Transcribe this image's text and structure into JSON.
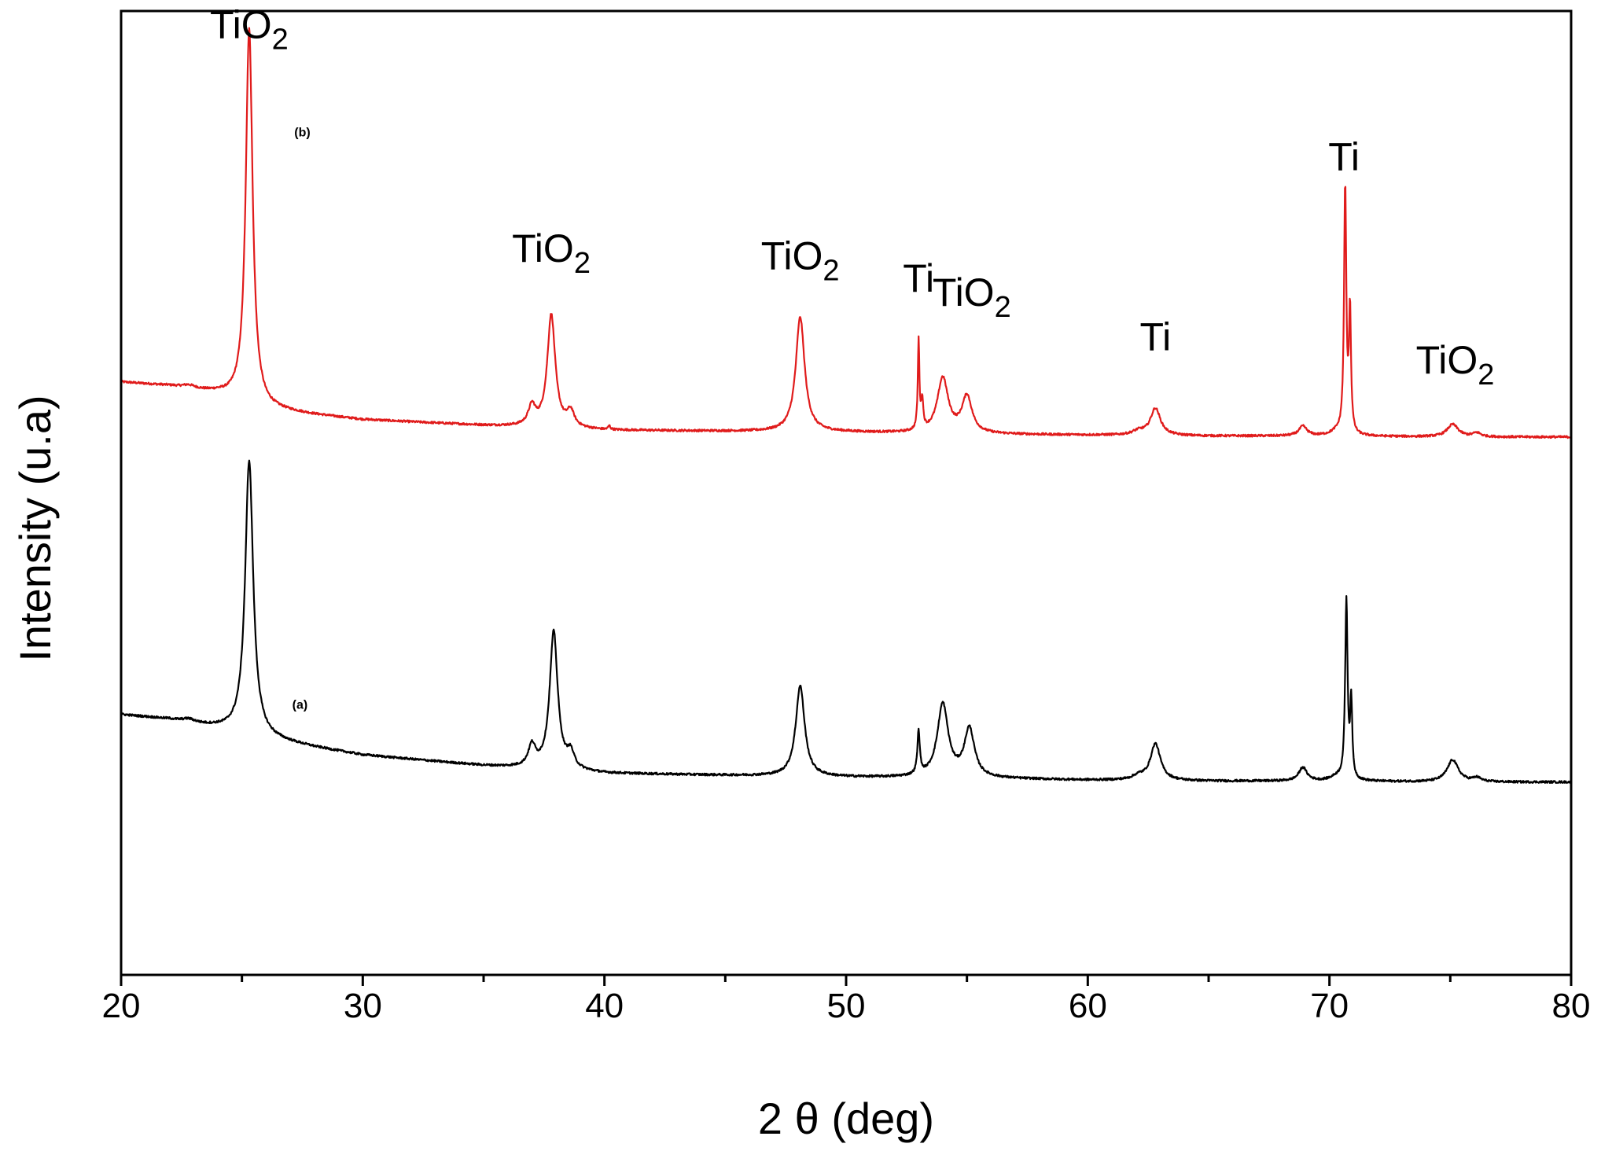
{
  "chart_data": {
    "type": "line",
    "title": "",
    "xlabel": "2 θ (deg)",
    "ylabel": "Intensity (u.a)",
    "xlim": [
      20,
      80
    ],
    "ylim": [
      0,
      100
    ],
    "x_ticks": [
      20,
      30,
      40,
      50,
      60,
      70,
      80
    ],
    "x_minor_step": 5,
    "grid": false,
    "series": [
      {
        "name": "(b)",
        "color": "#e01b1b",
        "baseline": [
          [
            20,
            61.5
          ],
          [
            22,
            61.1
          ],
          [
            24,
            60.3
          ],
          [
            26,
            58.7
          ],
          [
            28,
            58.1
          ],
          [
            30,
            57.6
          ],
          [
            35,
            57.0
          ],
          [
            40,
            56.5
          ],
          [
            45,
            56.4
          ],
          [
            50,
            56.3
          ],
          [
            55,
            56.1
          ],
          [
            60,
            56.0
          ],
          [
            65,
            55.9
          ],
          [
            70,
            55.9
          ],
          [
            75,
            55.8
          ],
          [
            80,
            55.8
          ]
        ],
        "peaks": [
          {
            "x": 25.3,
            "height": 39.0,
            "width": 0.17
          },
          {
            "x": 22.8,
            "height": 0.3,
            "width": 0.3
          },
          {
            "x": 37.0,
            "height": 2.0,
            "width": 0.18
          },
          {
            "x": 37.8,
            "height": 11.7,
            "width": 0.2
          },
          {
            "x": 38.6,
            "height": 1.6,
            "width": 0.18
          },
          {
            "x": 40.2,
            "height": 0.4,
            "width": 0.05
          },
          {
            "x": 48.1,
            "height": 11.9,
            "width": 0.22
          },
          {
            "x": 53.0,
            "height": 9.3,
            "width": 0.04
          },
          {
            "x": 53.15,
            "height": 3.0,
            "width": 0.05
          },
          {
            "x": 54.0,
            "height": 5.7,
            "width": 0.27
          },
          {
            "x": 55.0,
            "height": 3.8,
            "width": 0.25
          },
          {
            "x": 62.1,
            "height": 0.4,
            "width": 0.3
          },
          {
            "x": 62.8,
            "height": 2.8,
            "width": 0.25
          },
          {
            "x": 68.9,
            "height": 1.0,
            "width": 0.2
          },
          {
            "x": 70.3,
            "height": 0.4,
            "width": 0.3
          },
          {
            "x": 70.65,
            "height": 25.6,
            "width": 0.055
          },
          {
            "x": 70.85,
            "height": 12.7,
            "width": 0.05
          },
          {
            "x": 75.1,
            "height": 1.3,
            "width": 0.28
          },
          {
            "x": 76.1,
            "height": 0.4,
            "width": 0.2
          }
        ]
      },
      {
        "name": "(a)",
        "color": "#000000",
        "baseline": [
          [
            20,
            27.0
          ],
          [
            22,
            26.5
          ],
          [
            24,
            25.6
          ],
          [
            26,
            24.5
          ],
          [
            28,
            23.6
          ],
          [
            30,
            22.8
          ],
          [
            35,
            21.7
          ],
          [
            40,
            20.9
          ],
          [
            45,
            20.7
          ],
          [
            50,
            20.5
          ],
          [
            55,
            20.4
          ],
          [
            60,
            20.2
          ],
          [
            65,
            20.1
          ],
          [
            70,
            20.1
          ],
          [
            75,
            20.0
          ],
          [
            80,
            20.0
          ]
        ],
        "peaks": [
          {
            "x": 25.3,
            "height": 28.5,
            "width": 0.2
          },
          {
            "x": 22.8,
            "height": 0.3,
            "width": 0.3
          },
          {
            "x": 37.0,
            "height": 2.2,
            "width": 0.18
          },
          {
            "x": 37.9,
            "height": 14.3,
            "width": 0.2
          },
          {
            "x": 38.6,
            "height": 1.6,
            "width": 0.18
          },
          {
            "x": 48.1,
            "height": 9.4,
            "width": 0.22
          },
          {
            "x": 53.0,
            "height": 4.5,
            "width": 0.06
          },
          {
            "x": 54.0,
            "height": 7.6,
            "width": 0.27
          },
          {
            "x": 55.1,
            "height": 5.0,
            "width": 0.25
          },
          {
            "x": 62.1,
            "height": 0.4,
            "width": 0.3
          },
          {
            "x": 62.8,
            "height": 3.8,
            "width": 0.25
          },
          {
            "x": 68.9,
            "height": 1.4,
            "width": 0.2
          },
          {
            "x": 70.3,
            "height": 0.4,
            "width": 0.3
          },
          {
            "x": 70.7,
            "height": 18.6,
            "width": 0.06
          },
          {
            "x": 70.9,
            "height": 8.0,
            "width": 0.05
          },
          {
            "x": 75.1,
            "height": 2.3,
            "width": 0.28
          },
          {
            "x": 76.1,
            "height": 0.4,
            "width": 0.2
          }
        ]
      }
    ],
    "annotations": [
      {
        "text": "TiO",
        "sub": "2",
        "x": 25.3,
        "y": 97.2
      },
      {
        "text": "TiO",
        "sub": "2",
        "x": 37.8,
        "y": 74.0
      },
      {
        "text": "TiO",
        "sub": "2",
        "x": 48.1,
        "y": 73.2
      },
      {
        "text": "Ti",
        "sub": "",
        "x": 53.0,
        "y": 70.9
      },
      {
        "text": "TiO",
        "sub": "2",
        "x": 55.2,
        "y": 69.4
      },
      {
        "text": "Ti",
        "sub": "",
        "x": 62.8,
        "y": 64.8
      },
      {
        "text": "Ti",
        "sub": "",
        "x": 70.6,
        "y": 83.5
      },
      {
        "text": "TiO",
        "sub": "2",
        "x": 75.2,
        "y": 62.4
      }
    ],
    "curve_labels": [
      {
        "text": "(b)",
        "x": 27.5,
        "y": 87.0
      },
      {
        "text": "(a)",
        "x": 27.4,
        "y": 27.6
      }
    ]
  }
}
